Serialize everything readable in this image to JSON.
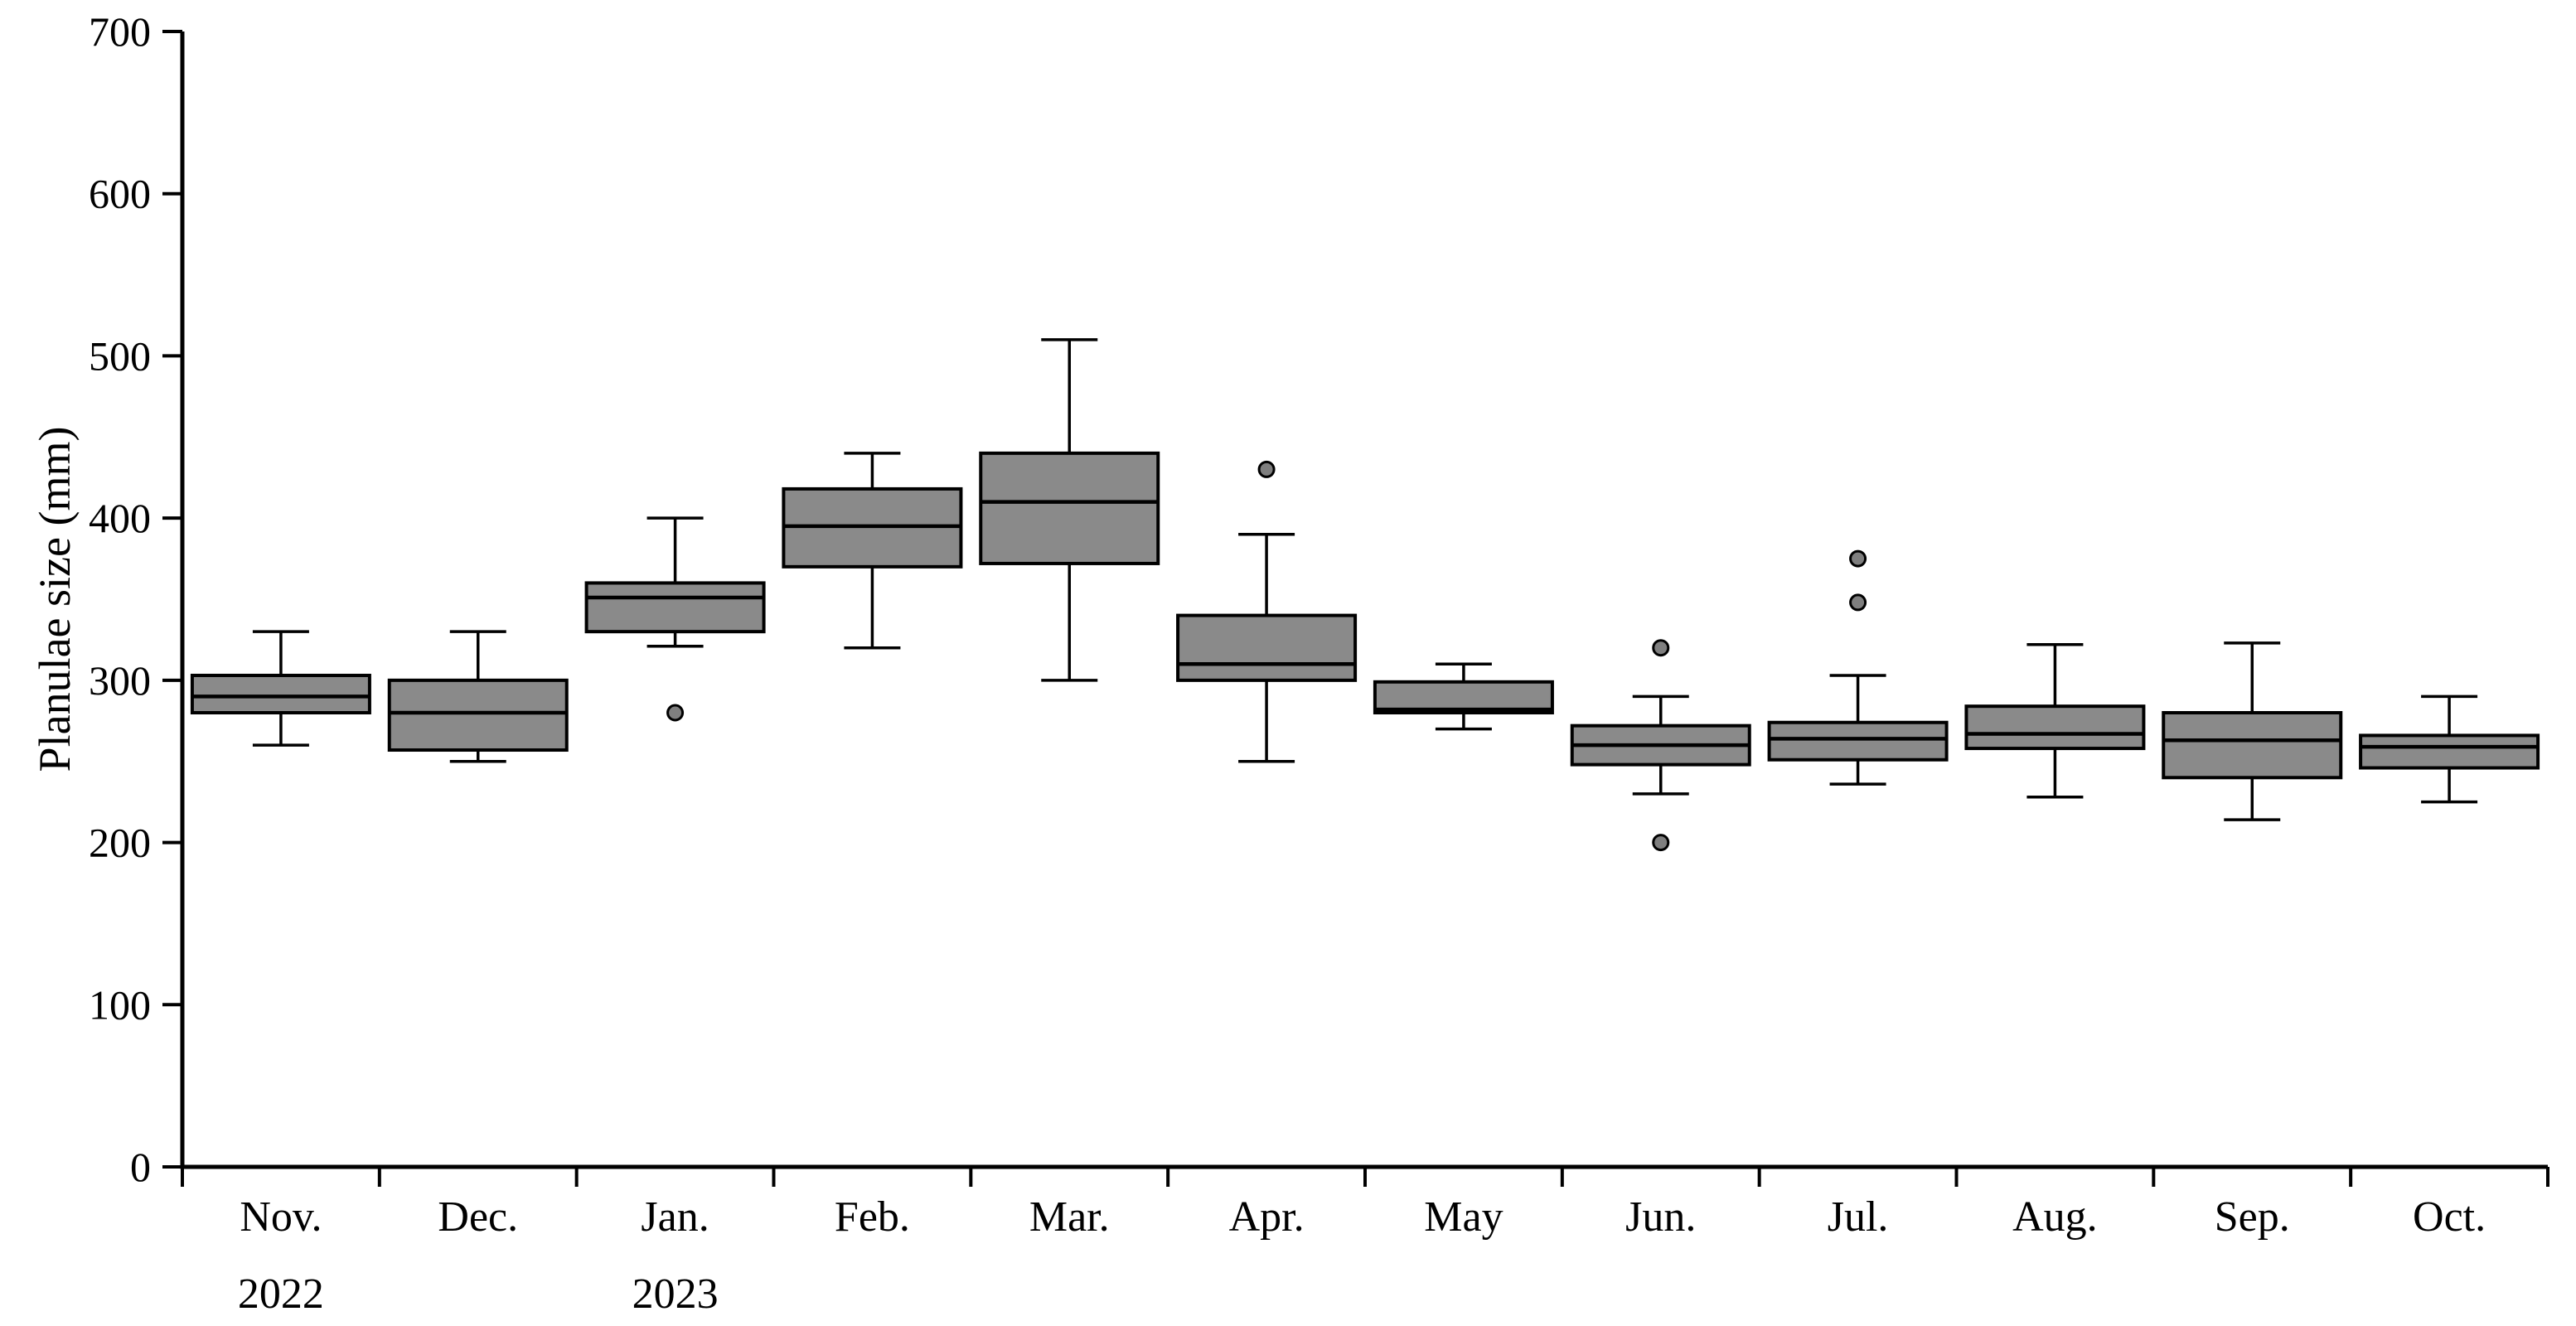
{
  "figure": {
    "background": "#ffffff"
  },
  "chart_data": {
    "type": "boxplot",
    "title": "",
    "xlabel": "",
    "ylabel": "Planulae size (mm)",
    "ylim": [
      0,
      700
    ],
    "yticks": [
      0,
      100,
      200,
      300,
      400,
      500,
      600,
      700
    ],
    "categories": [
      "Nov.",
      "Dec.",
      "Jan.",
      "Feb.",
      "Mar.",
      "Apr.",
      "May",
      "Jun.",
      "Jul.",
      "Aug.",
      "Sep.",
      "Oct."
    ],
    "year_labels": [
      {
        "category_index": 0,
        "label": "2022"
      },
      {
        "category_index": 2,
        "label": "2023"
      }
    ],
    "grid": false,
    "legend": "none",
    "colors": {
      "box_fill": "#8a8a8a",
      "outlier_fill": "#7f7f7f",
      "line": "#000000",
      "text": "#000000"
    },
    "boxes": [
      {
        "month": "Nov.",
        "low": 260,
        "q1": 280,
        "median": 290,
        "q3": 303,
        "high": 330,
        "outliers": []
      },
      {
        "month": "Dec.",
        "low": 250,
        "q1": 257,
        "median": 280,
        "q3": 300,
        "high": 330,
        "outliers": []
      },
      {
        "month": "Jan.",
        "low": 321,
        "q1": 330,
        "median": 351,
        "q3": 360,
        "high": 400,
        "outliers": [
          280
        ]
      },
      {
        "month": "Feb.",
        "low": 320,
        "q1": 370,
        "median": 395,
        "q3": 418,
        "high": 440,
        "outliers": []
      },
      {
        "month": "Mar.",
        "low": 300,
        "q1": 372,
        "median": 410,
        "q3": 440,
        "high": 510,
        "outliers": []
      },
      {
        "month": "Apr.",
        "low": 250,
        "q1": 300,
        "median": 310,
        "q3": 340,
        "high": 390,
        "outliers": [
          430
        ]
      },
      {
        "month": "May",
        "low": 270,
        "q1": 280,
        "median": 282,
        "q3": 299,
        "high": 310,
        "outliers": []
      },
      {
        "month": "Jun.",
        "low": 230,
        "q1": 248,
        "median": 260,
        "q3": 272,
        "high": 290,
        "outliers": [
          320,
          200
        ]
      },
      {
        "month": "Jul.",
        "low": 236,
        "q1": 251,
        "median": 264,
        "q3": 274,
        "high": 303,
        "outliers": [
          348,
          375
        ]
      },
      {
        "month": "Aug.",
        "low": 228,
        "q1": 258,
        "median": 267,
        "q3": 284,
        "high": 322,
        "outliers": []
      },
      {
        "month": "Sep.",
        "low": 214,
        "q1": 240,
        "median": 263,
        "q3": 280,
        "high": 323,
        "outliers": []
      },
      {
        "month": "Oct.",
        "low": 225,
        "q1": 246,
        "median": 259,
        "q3": 266,
        "high": 290,
        "outliers": []
      }
    ]
  }
}
